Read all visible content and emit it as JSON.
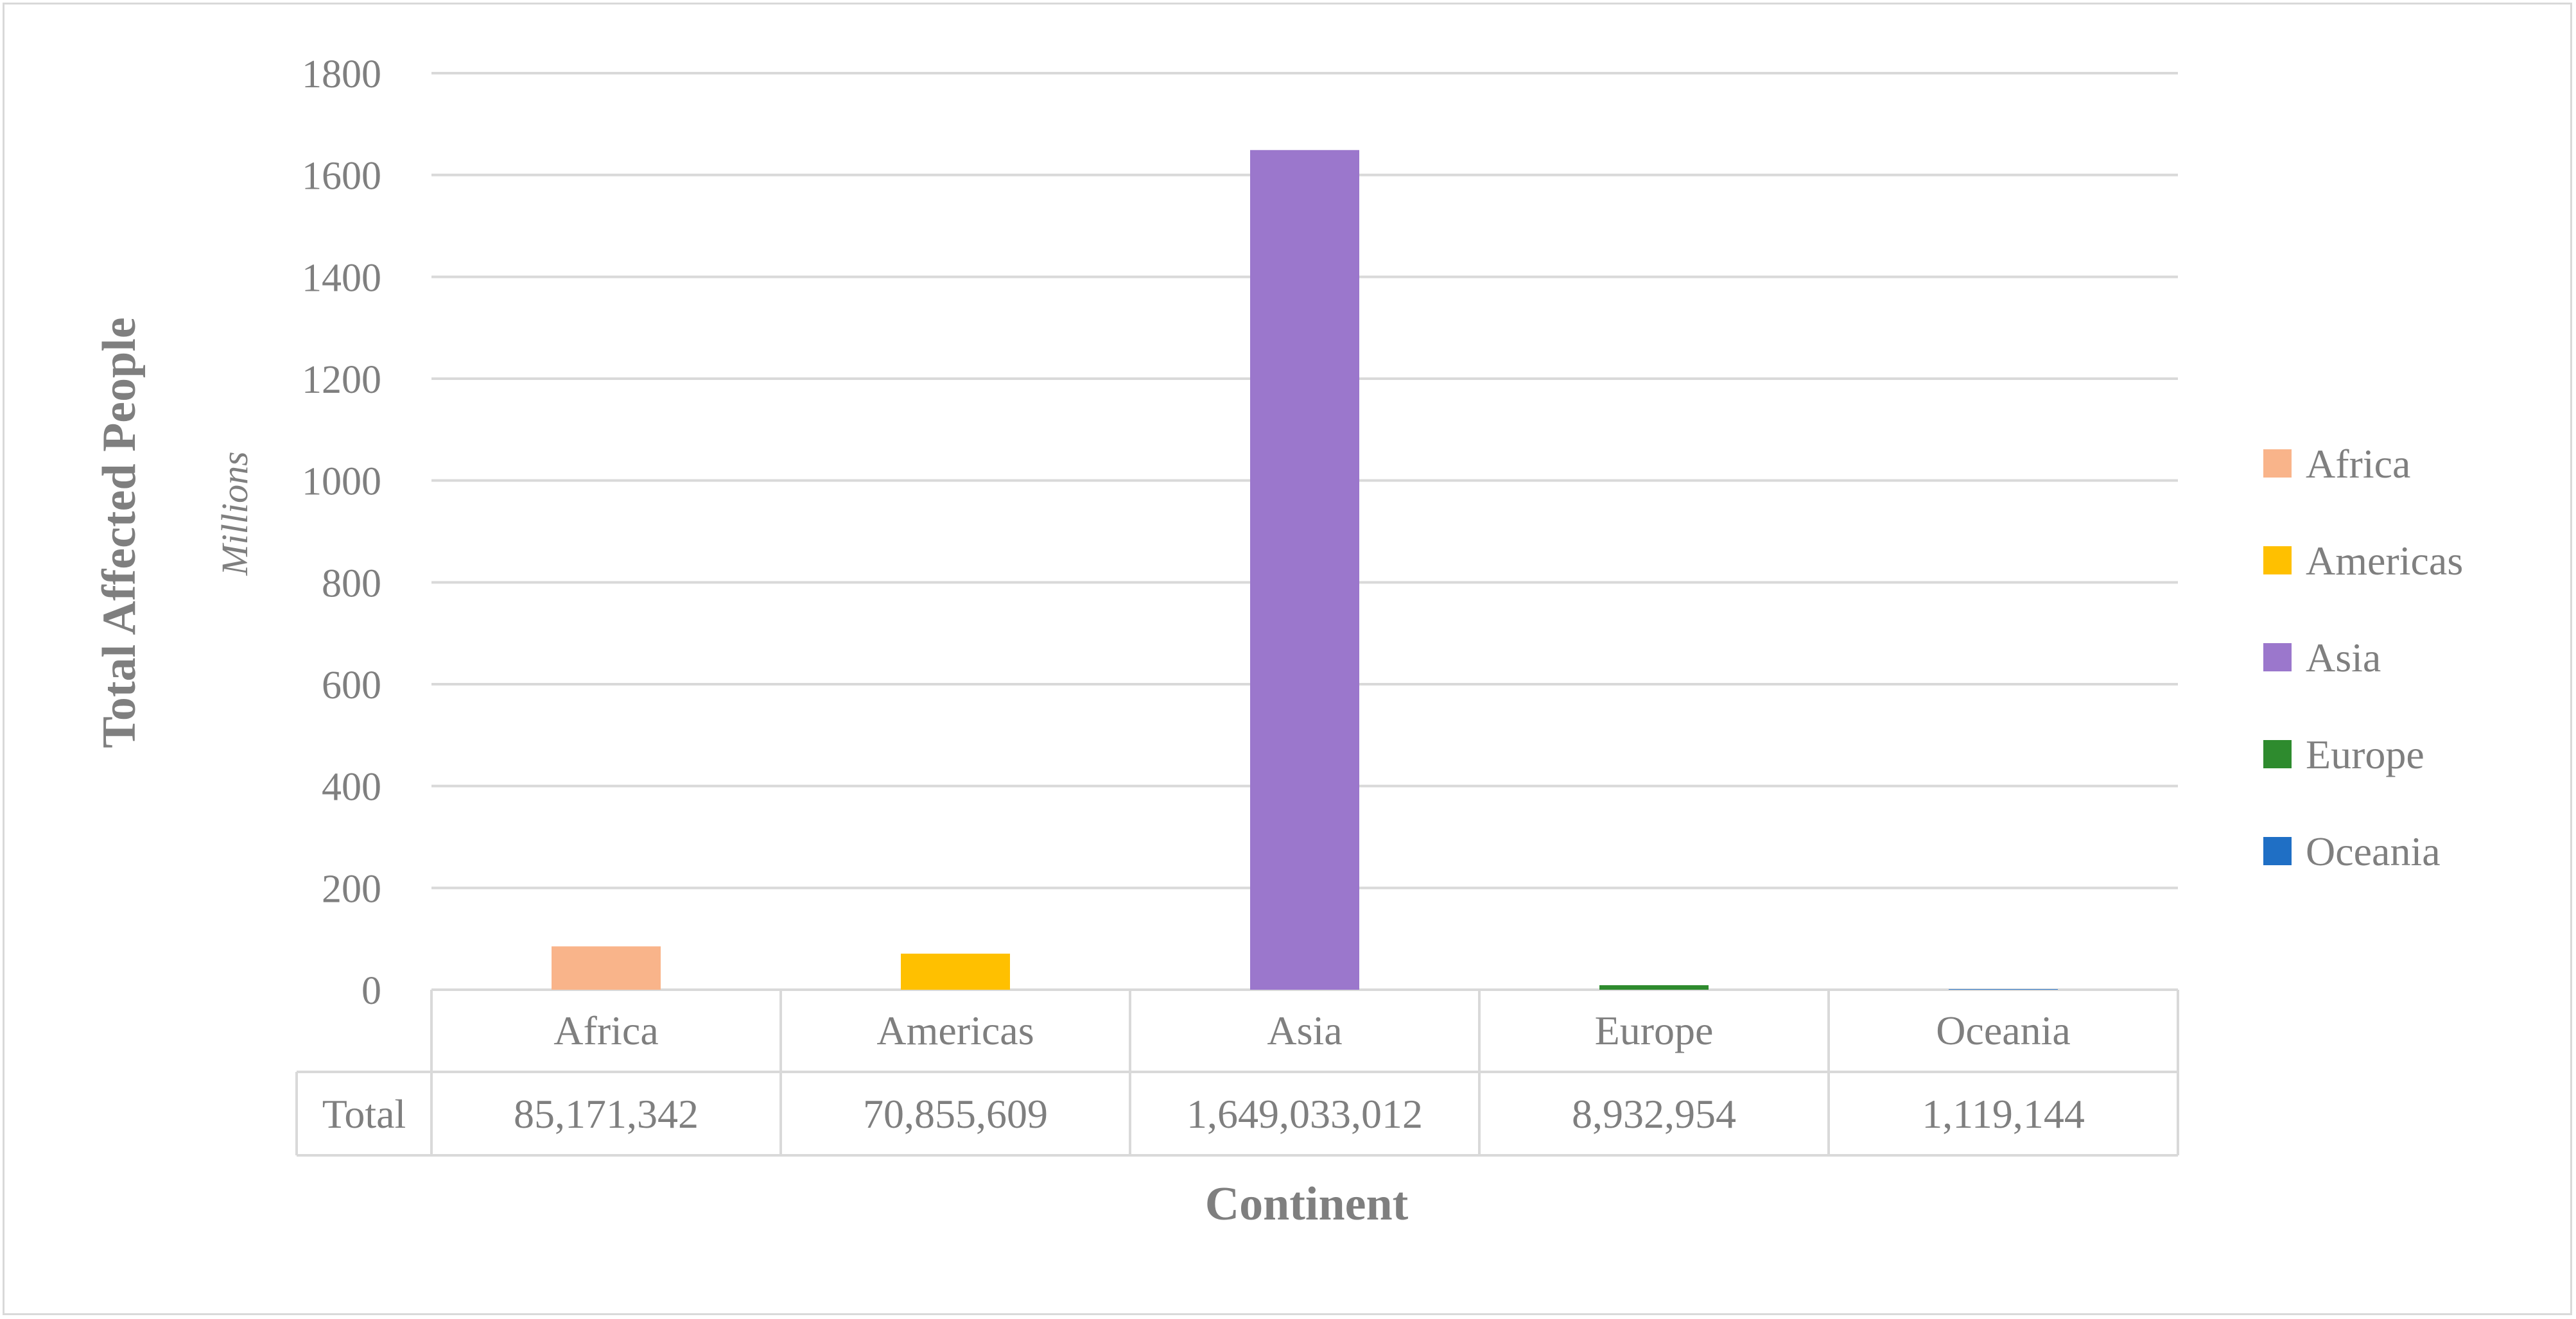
{
  "chart_data": {
    "type": "bar",
    "categories": [
      "Africa",
      "Americas",
      "Asia",
      "Europe",
      "Oceania"
    ],
    "values": [
      85171342,
      70855609,
      1649033012,
      8932954,
      1119144
    ],
    "colors": [
      "#f9b48a",
      "#ffc000",
      "#9b77cc",
      "#2e8b2e",
      "#1f6fc5"
    ],
    "ylim": [
      0,
      1800
    ],
    "yticks": [
      0,
      200,
      400,
      600,
      800,
      1000,
      1200,
      1400,
      1600,
      1800
    ],
    "y_unit_label": "Millions",
    "ylabel": "Total Affected People",
    "xlabel": "Continent",
    "grid": true,
    "legend_position": "right",
    "legend": [
      "Africa",
      "Americas",
      "Asia",
      "Europe",
      "Oceania"
    ],
    "data_table": {
      "row_label": "Total",
      "cells": [
        "85,171,342",
        "70,855,609",
        "1,649,033,012",
        "8,932,954",
        "1,119,144"
      ]
    }
  }
}
